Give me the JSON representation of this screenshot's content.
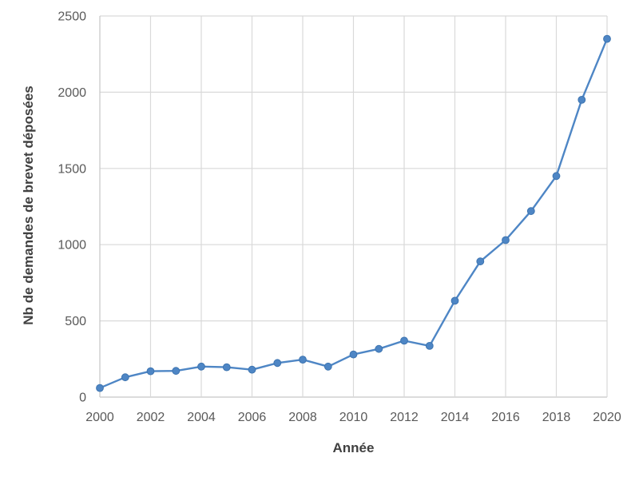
{
  "chart_data": {
    "type": "line",
    "title": "",
    "xlabel": "Année",
    "ylabel": "Nb de demandes de brevet déposées",
    "series": [
      {
        "name": "Nb de demandes de brevet déposées",
        "x": [
          2000,
          2001,
          2002,
          2003,
          2004,
          2005,
          2006,
          2007,
          2008,
          2009,
          2010,
          2011,
          2012,
          2013,
          2014,
          2015,
          2016,
          2017,
          2018,
          2019,
          2020
        ],
        "values": [
          60,
          130,
          170,
          172,
          200,
          196,
          180,
          224,
          246,
          200,
          280,
          316,
          370,
          336,
          632,
          890,
          1030,
          1220,
          1450,
          1950,
          2350
        ]
      }
    ],
    "xlim": [
      2000,
      2020
    ],
    "ylim": [
      0,
      2500
    ],
    "x_ticks": [
      2000,
      2002,
      2004,
      2006,
      2008,
      2010,
      2012,
      2014,
      2016,
      2018,
      2020
    ],
    "y_ticks": [
      0,
      500,
      1000,
      1500,
      2000,
      2500
    ],
    "grid": true,
    "legend": "none",
    "marker": "circle",
    "colors": {
      "line": "#4e86c5",
      "marker_fill": "#4e86c5",
      "marker_edge": "#3d74b0",
      "gridline": "#d9d9d9",
      "axis_line": "#c6c6c6",
      "tick_label": "#595959",
      "axis_title": "#404040",
      "background": "#ffffff"
    }
  }
}
